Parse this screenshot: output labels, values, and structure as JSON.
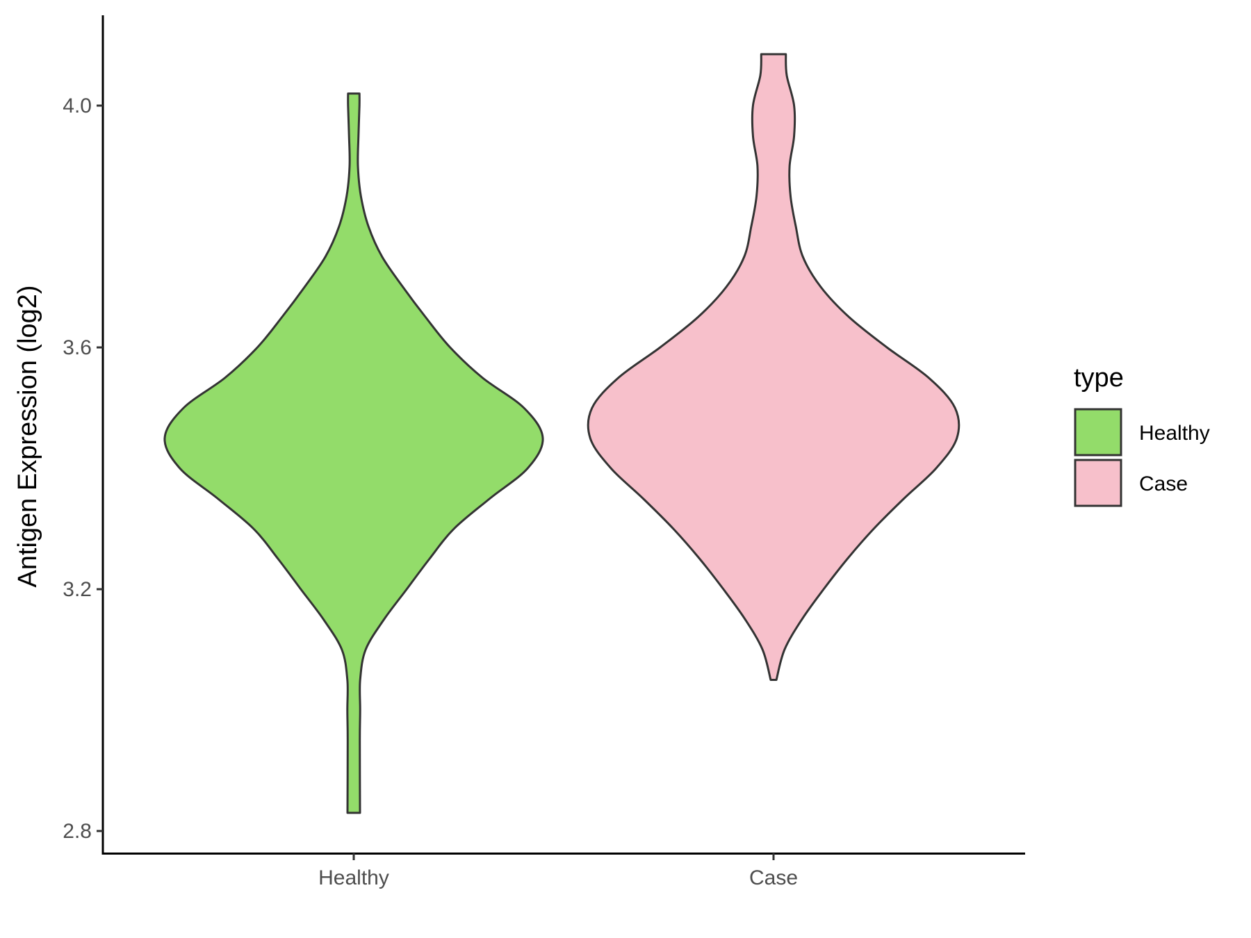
{
  "chart_data": {
    "type": "violin",
    "xlabel": "",
    "ylabel": "Antigen Expression (log2)",
    "categories": [
      "Healthy",
      "Case"
    ],
    "ylim": [
      2.77,
      4.15
    ],
    "yticks": [
      2.8,
      3.2,
      3.6,
      4.0
    ],
    "ytick_labels": [
      "2.8",
      "3.2",
      "3.6",
      "4.0"
    ],
    "grid": false,
    "legend": {
      "title": "type",
      "position": "right",
      "entries": [
        {
          "label": "Healthy",
          "color": "#93dc6a"
        },
        {
          "label": "Case",
          "color": "#f7c0cb"
        }
      ]
    },
    "series": [
      {
        "name": "Healthy",
        "color": "#93dc6a",
        "ymin": 2.83,
        "ymax": 4.02,
        "density_profile": [
          [
            2.83,
            0.033
          ],
          [
            2.95,
            0.032
          ],
          [
            3.0,
            0.034
          ],
          [
            3.05,
            0.034
          ],
          [
            3.1,
            0.063
          ],
          [
            3.15,
            0.16
          ],
          [
            3.2,
            0.28
          ],
          [
            3.25,
            0.4
          ],
          [
            3.3,
            0.53
          ],
          [
            3.35,
            0.72
          ],
          [
            3.4,
            0.92
          ],
          [
            3.45,
            1.0
          ],
          [
            3.5,
            0.9
          ],
          [
            3.55,
            0.68
          ],
          [
            3.6,
            0.51
          ],
          [
            3.65,
            0.38
          ],
          [
            3.7,
            0.26
          ],
          [
            3.75,
            0.15
          ],
          [
            3.8,
            0.078
          ],
          [
            3.85,
            0.038
          ],
          [
            3.9,
            0.022
          ],
          [
            3.95,
            0.025
          ],
          [
            4.0,
            0.03
          ],
          [
            4.02,
            0.03
          ]
        ]
      },
      {
        "name": "Case",
        "color": "#f7c0cb",
        "ymin": 3.05,
        "ymax": 4.085,
        "density_profile": [
          [
            3.05,
            0.015
          ],
          [
            3.1,
            0.058
          ],
          [
            3.15,
            0.15
          ],
          [
            3.2,
            0.265
          ],
          [
            3.25,
            0.39
          ],
          [
            3.3,
            0.53
          ],
          [
            3.35,
            0.69
          ],
          [
            3.4,
            0.86
          ],
          [
            3.45,
            0.97
          ],
          [
            3.5,
            0.96
          ],
          [
            3.55,
            0.82
          ],
          [
            3.6,
            0.6
          ],
          [
            3.65,
            0.4
          ],
          [
            3.7,
            0.25
          ],
          [
            3.75,
            0.155
          ],
          [
            3.8,
            0.118
          ],
          [
            3.85,
            0.09
          ],
          [
            3.9,
            0.085
          ],
          [
            3.95,
            0.109
          ],
          [
            4.0,
            0.109
          ],
          [
            4.05,
            0.07
          ],
          [
            4.085,
            0.065
          ]
        ]
      }
    ]
  }
}
